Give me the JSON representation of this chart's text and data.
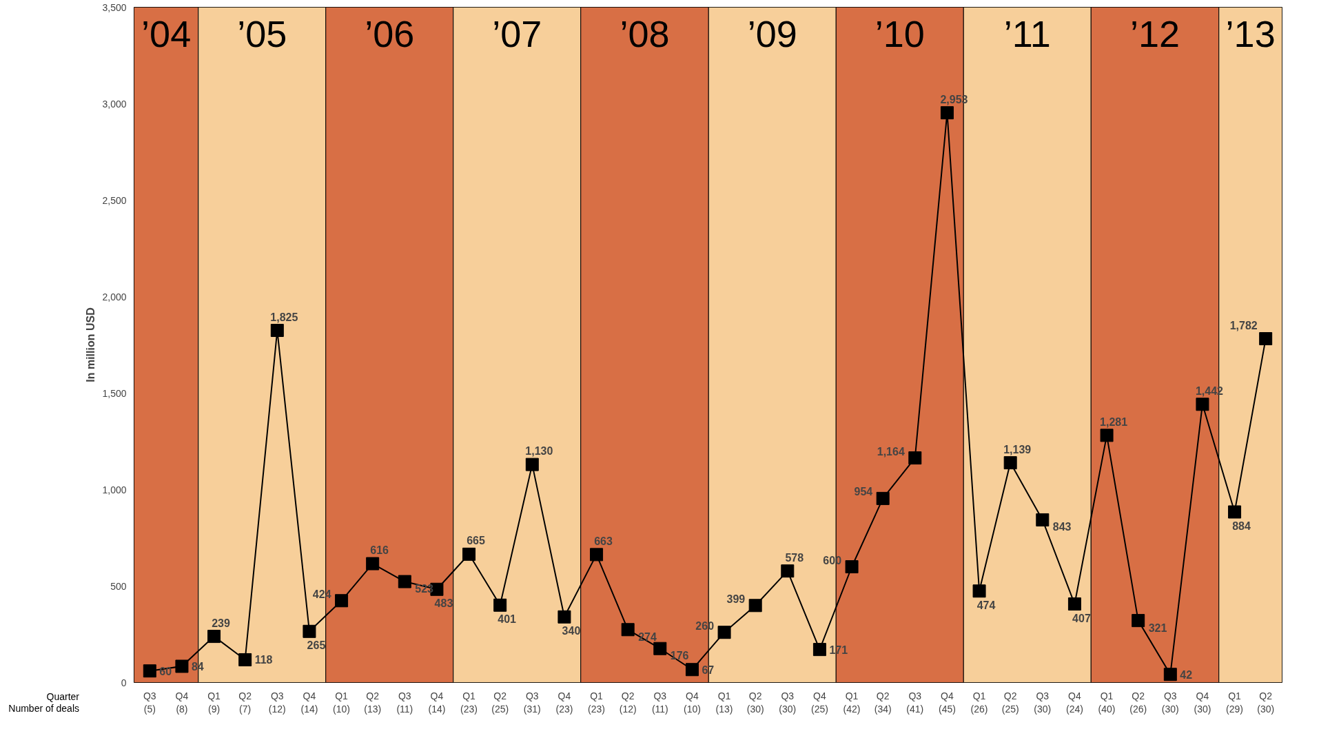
{
  "chart_data": {
    "type": "line",
    "ylabel": "In million USD",
    "x": [
      "2004-08-15",
      "2004-11-15",
      "2005-02-15",
      "2005-05-15",
      "2005-08-15",
      "2005-11-15",
      "2006-02-15",
      "2006-05-15",
      "2006-08-15",
      "2006-11-15",
      "2007-02-15",
      "2007-05-15",
      "2007-08-15",
      "2007-11-15",
      "2008-02-15",
      "2008-05-15",
      "2008-08-15",
      "2008-11-15",
      "2009-02-15",
      "2009-05-15",
      "2009-08-15",
      "2009-11-15",
      "2010-02-15",
      "2010-05-15",
      "2010-08-15",
      "2010-11-15",
      "2011-02-15",
      "2011-05-15",
      "2011-08-15",
      "2011-11-15",
      "2012-02-15",
      "2012-05-15",
      "2012-08-15",
      "2012-11-15",
      "2013-02-15",
      "2013-05-15"
    ],
    "xlim": [
      "2004-07-01",
      "2013-07-01"
    ],
    "xticks": [
      {
        "value": "2004-08-15",
        "label": "Q3\n(5)"
      },
      {
        "value": "2004-11-15",
        "label": "Q4\n(8)"
      },
      {
        "value": "2005-02-15",
        "label": "Q1\n(9)"
      },
      {
        "value": "2005-05-15",
        "label": "Q2\n(7)"
      },
      {
        "value": "2005-08-15",
        "label": "Q3\n(12)"
      },
      {
        "value": "2005-11-15",
        "label": "Q4\n(14)"
      },
      {
        "value": "2006-02-15",
        "label": "Q1\n(10)"
      },
      {
        "value": "2006-05-15",
        "label": "Q2\n(13)"
      },
      {
        "value": "2006-08-15",
        "label": "Q3\n(11)"
      },
      {
        "value": "2006-11-15",
        "label": "Q4\n(14)"
      },
      {
        "value": "2007-02-15",
        "label": "Q1\n(23)"
      },
      {
        "value": "2007-05-15",
        "label": "Q2\n(25)"
      },
      {
        "value": "2007-08-15",
        "label": "Q3\n(31)"
      },
      {
        "value": "2007-11-15",
        "label": "Q4\n(23)"
      },
      {
        "value": "2008-02-15",
        "label": "Q1\n(23)"
      },
      {
        "value": "2008-05-15",
        "label": "Q2\n(12)"
      },
      {
        "value": "2008-08-15",
        "label": "Q3\n(11)"
      },
      {
        "value": "2008-11-15",
        "label": "Q4\n(10)"
      },
      {
        "value": "2009-02-15",
        "label": "Q1\n(13)"
      },
      {
        "value": "2009-05-15",
        "label": "Q2\n(30)"
      },
      {
        "value": "2009-08-15",
        "label": "Q3\n(30)"
      },
      {
        "value": "2009-11-15",
        "label": "Q4\n(25)"
      },
      {
        "value": "2010-02-15",
        "label": "Q1\n(42)"
      },
      {
        "value": "2010-05-15",
        "label": "Q2\n(34)"
      },
      {
        "value": "2010-08-15",
        "label": "Q3\n(41)"
      },
      {
        "value": "2010-11-15",
        "label": "Q4\n(45)"
      },
      {
        "value": "2011-02-15",
        "label": "Q1\n(26)"
      },
      {
        "value": "2011-05-15",
        "label": "Q2\n(25)"
      },
      {
        "value": "2011-08-15",
        "label": "Q3\n(30)"
      },
      {
        "value": "2011-11-15",
        "label": "Q4\n(24)"
      },
      {
        "value": "2012-02-15",
        "label": "Q1\n(40)"
      },
      {
        "value": "2012-05-15",
        "label": "Q2\n(26)"
      },
      {
        "value": "2012-08-15",
        "label": "Q3\n(30)"
      },
      {
        "value": "2012-11-15",
        "label": "Q4\n(30)"
      },
      {
        "value": "2013-02-15",
        "label": "Q1\n(29)"
      },
      {
        "value": "2013-05-15",
        "label": "Q2\n(30)"
      }
    ],
    "series": [
      {
        "color": "#000000",
        "values": [
          60,
          84,
          239,
          118,
          1825,
          265,
          424,
          616,
          523,
          483,
          665,
          401,
          1130,
          340,
          663,
          274,
          176,
          67,
          260,
          399,
          578,
          171,
          600,
          954,
          1164,
          2953,
          474,
          1139,
          843,
          407,
          1281,
          321,
          42,
          1442,
          884,
          1782
        ],
        "value_labels": [
          "60",
          "84",
          "239",
          "118",
          "1,825",
          "265",
          "424",
          "616",
          "523",
          "483",
          "665",
          "401",
          "1,130",
          "340",
          "663",
          "274",
          "176",
          "67",
          "260",
          "399",
          "578",
          "171",
          "600",
          "954",
          "1,164",
          "2,953",
          "474",
          "1,139",
          "843",
          "407",
          "1,281",
          "321",
          "42",
          "1,442",
          "884",
          "1,782"
        ]
      }
    ],
    "ylim": [
      0,
      3500
    ],
    "yticks": [
      0,
      500,
      {
        "value": 1000,
        "label": "1,000"
      },
      {
        "value": 1500,
        "label": "1,500"
      },
      {
        "value": 2000,
        "label": "2,000"
      },
      {
        "value": 2500,
        "label": "2,500"
      },
      {
        "value": 3000,
        "label": "3,000"
      },
      {
        "value": 3500,
        "label": "3,500"
      }
    ],
    "bands": [
      {
        "axis": "x",
        "from": "2004-07-01",
        "to": "2005-01-01",
        "label": "’04",
        "color": "#d86f45"
      },
      {
        "axis": "x",
        "from": "2005-01-01",
        "to": "2006-01-01",
        "label": "’05",
        "color": "#f7cf9a"
      },
      {
        "axis": "x",
        "from": "2006-01-01",
        "to": "2007-01-01",
        "label": "’06",
        "color": "#d86f45"
      },
      {
        "axis": "x",
        "from": "2007-01-01",
        "to": "2008-01-01",
        "label": "’07",
        "color": "#f7cf9a"
      },
      {
        "axis": "x",
        "from": "2008-01-01",
        "to": "2009-01-01",
        "label": "’08",
        "color": "#d86f45"
      },
      {
        "axis": "x",
        "from": "2009-01-01",
        "to": "2010-01-01",
        "label": "’09",
        "color": "#f7cf9a"
      },
      {
        "axis": "x",
        "from": "2010-01-01",
        "to": "2011-01-01",
        "label": "’10",
        "color": "#d86f45"
      },
      {
        "axis": "x",
        "from": "2011-01-01",
        "to": "2012-01-01",
        "label": "’11",
        "color": "#f7cf9a"
      },
      {
        "axis": "x",
        "from": "2012-01-01",
        "to": "2013-01-01",
        "label": "’12",
        "color": "#d86f45"
      },
      {
        "axis": "x",
        "from": "2013-01-01",
        "to": "2013-07-01",
        "label": "’13",
        "color": "#f7cf9a"
      }
    ],
    "annotations": [
      "Quarter",
      "Number of deals"
    ],
    "marker": "square",
    "line_style": "solid",
    "grid": false
  }
}
